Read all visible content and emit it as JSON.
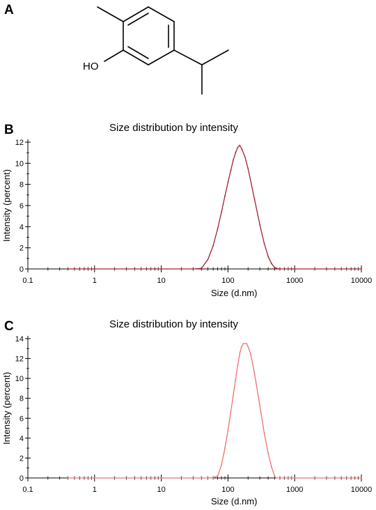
{
  "panels": {
    "a": {
      "letter": "A",
      "hydroxyl_label": "HO"
    },
    "b": {
      "letter": "B"
    },
    "c": {
      "letter": "C"
    }
  },
  "chart_data": [
    {
      "type": "line",
      "title": "Size distribution by intensity",
      "xlabel": "Size (d.nm)",
      "ylabel": "Intensity (percent)",
      "x_scale": "log",
      "xlim": [
        0.1,
        10000
      ],
      "ylim": [
        0,
        12
      ],
      "x_ticks": [
        0.1,
        1,
        10,
        100,
        1000,
        10000
      ],
      "x_tick_labels": [
        "0.1",
        "1",
        "10",
        "100",
        "1000",
        "10000"
      ],
      "y_ticks": [
        0,
        2,
        4,
        6,
        8,
        10,
        12
      ],
      "line_color": "#a02030",
      "series": [
        {
          "x": [
            0.4,
            10,
            30,
            40,
            50,
            60,
            70,
            80,
            90,
            100,
            110,
            120,
            130,
            140,
            150,
            160,
            180,
            200,
            250,
            300,
            350,
            400,
            450,
            500,
            550,
            600,
            1000,
            10000
          ],
          "y": [
            0,
            0,
            0,
            0.05,
            0.9,
            2.2,
            3.8,
            5.4,
            6.9,
            8.2,
            9.3,
            10.3,
            11.0,
            11.5,
            11.7,
            11.4,
            10.6,
            9.5,
            6.6,
            4.2,
            2.4,
            1.2,
            0.5,
            0.15,
            0.03,
            0,
            0,
            0
          ]
        }
      ]
    },
    {
      "type": "line",
      "title": "Size distribution by intensity",
      "xlabel": "Size (d.nm)",
      "ylabel": "Intensity (percent)",
      "x_scale": "log",
      "xlim": [
        0.1,
        10000
      ],
      "ylim": [
        0,
        14
      ],
      "x_ticks": [
        0.1,
        1,
        10,
        100,
        1000,
        10000
      ],
      "x_tick_labels": [
        "0.1",
        "1",
        "10",
        "100",
        "1000",
        "10000"
      ],
      "y_ticks": [
        0,
        2,
        4,
        6,
        8,
        10,
        12,
        14
      ],
      "line_color": "#f07070",
      "series": [
        {
          "x": [
            0.4,
            10,
            50,
            60,
            70,
            80,
            90,
            100,
            110,
            120,
            130,
            140,
            150,
            160,
            170,
            190,
            200,
            220,
            250,
            300,
            350,
            400,
            450,
            500,
            520,
            1000,
            10000
          ],
          "y": [
            0,
            0,
            0,
            0.02,
            0.2,
            1.3,
            3.0,
            4.8,
            6.6,
            8.3,
            9.9,
            11.3,
            12.5,
            13.2,
            13.5,
            13.5,
            13.2,
            12.4,
            10.5,
            7.3,
            4.5,
            2.5,
            1.1,
            0.2,
            0,
            0,
            0
          ]
        }
      ]
    }
  ]
}
